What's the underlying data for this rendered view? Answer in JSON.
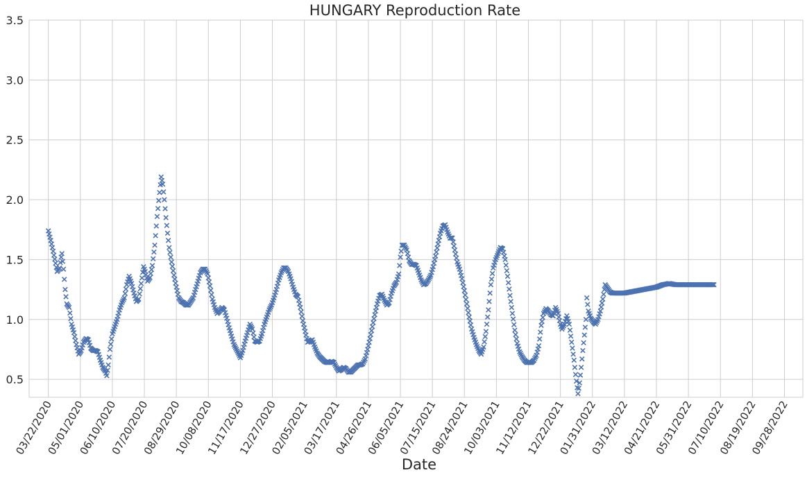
{
  "chart_data": {
    "type": "scatter",
    "marker": "x",
    "title": "HUNGARY   Reproduction Rate",
    "xlabel": "Date",
    "ylabel": "",
    "ylim": [
      0.35,
      3.5
    ],
    "yticks": [
      0.5,
      1.0,
      1.5,
      2.0,
      2.5,
      3.0,
      3.5
    ],
    "ytick_labels": [
      "0.5",
      "1.0",
      "1.5",
      "2.0",
      "2.5",
      "3.0",
      "3.5"
    ],
    "xlim": [
      "2020-02-27",
      "2022-10-21"
    ],
    "xtick_labels": [
      "03/22/2020",
      "05/01/2020",
      "06/10/2020",
      "07/20/2020",
      "08/29/2020",
      "10/08/2020",
      "11/17/2020",
      "12/27/2020",
      "02/05/2021",
      "03/17/2021",
      "04/26/2021",
      "06/05/2021",
      "07/15/2021",
      "08/24/2021",
      "10/03/2021",
      "11/12/2021",
      "12/22/2021",
      "01/31/2022",
      "03/12/2022",
      "04/21/2022",
      "05/31/2022",
      "07/10/2022",
      "08/19/2022",
      "09/28/2022"
    ],
    "grid": true,
    "series": [
      {
        "color": "#4c72b0",
        "points": [
          [
            "2020-03-22",
            1.74
          ],
          [
            "2020-03-25",
            1.66
          ],
          [
            "2020-03-28",
            1.57
          ],
          [
            "2020-03-31",
            1.47
          ],
          [
            "2020-04-02",
            1.4
          ],
          [
            "2020-04-05",
            1.43
          ],
          [
            "2020-04-07",
            1.52
          ],
          [
            "2020-04-08",
            1.55
          ],
          [
            "2020-04-10",
            1.42
          ],
          [
            "2020-04-12",
            1.25
          ],
          [
            "2020-04-14",
            1.13
          ],
          [
            "2020-04-17",
            1.1
          ],
          [
            "2020-04-20",
            0.96
          ],
          [
            "2020-04-23",
            0.89
          ],
          [
            "2020-04-26",
            0.79
          ],
          [
            "2020-04-29",
            0.71
          ],
          [
            "2020-05-02",
            0.74
          ],
          [
            "2020-05-05",
            0.81
          ],
          [
            "2020-05-08",
            0.84
          ],
          [
            "2020-05-11",
            0.83
          ],
          [
            "2020-05-14",
            0.76
          ],
          [
            "2020-05-17",
            0.74
          ],
          [
            "2020-05-20",
            0.74
          ],
          [
            "2020-05-23",
            0.73
          ],
          [
            "2020-05-26",
            0.66
          ],
          [
            "2020-05-29",
            0.6
          ],
          [
            "2020-06-01",
            0.57
          ],
          [
            "2020-06-03",
            0.53
          ],
          [
            "2020-06-05",
            0.62
          ],
          [
            "2020-06-07",
            0.75
          ],
          [
            "2020-06-10",
            0.88
          ],
          [
            "2020-06-13",
            0.94
          ],
          [
            "2020-06-16",
            1.0
          ],
          [
            "2020-06-19",
            1.08
          ],
          [
            "2020-06-22",
            1.14
          ],
          [
            "2020-06-25",
            1.18
          ],
          [
            "2020-06-28",
            1.29
          ],
          [
            "2020-07-01",
            1.36
          ],
          [
            "2020-07-04",
            1.3
          ],
          [
            "2020-07-07",
            1.22
          ],
          [
            "2020-07-10",
            1.15
          ],
          [
            "2020-07-13",
            1.17
          ],
          [
            "2020-07-16",
            1.3
          ],
          [
            "2020-07-19",
            1.44
          ],
          [
            "2020-07-21",
            1.4
          ],
          [
            "2020-07-24",
            1.32
          ],
          [
            "2020-07-27",
            1.35
          ],
          [
            "2020-07-30",
            1.45
          ],
          [
            "2020-08-02",
            1.62
          ],
          [
            "2020-08-05",
            1.86
          ],
          [
            "2020-08-08",
            2.06
          ],
          [
            "2020-08-10",
            2.19
          ],
          [
            "2020-08-12",
            2.13
          ],
          [
            "2020-08-14",
            2.0
          ],
          [
            "2020-08-16",
            1.85
          ],
          [
            "2020-08-18",
            1.72
          ],
          [
            "2020-08-20",
            1.6
          ],
          [
            "2020-08-23",
            1.48
          ],
          [
            "2020-08-26",
            1.37
          ],
          [
            "2020-08-29",
            1.27
          ],
          [
            "2020-09-01",
            1.18
          ],
          [
            "2020-09-04",
            1.15
          ],
          [
            "2020-09-07",
            1.14
          ],
          [
            "2020-09-10",
            1.12
          ],
          [
            "2020-09-13",
            1.12
          ],
          [
            "2020-09-16",
            1.15
          ],
          [
            "2020-09-19",
            1.18
          ],
          [
            "2020-09-22",
            1.25
          ],
          [
            "2020-09-25",
            1.32
          ],
          [
            "2020-09-28",
            1.39
          ],
          [
            "2020-10-01",
            1.42
          ],
          [
            "2020-10-04",
            1.42
          ],
          [
            "2020-10-07",
            1.38
          ],
          [
            "2020-10-10",
            1.28
          ],
          [
            "2020-10-13",
            1.17
          ],
          [
            "2020-10-16",
            1.1
          ],
          [
            "2020-10-19",
            1.05
          ],
          [
            "2020-10-22",
            1.07
          ],
          [
            "2020-10-25",
            1.1
          ],
          [
            "2020-10-28",
            1.08
          ],
          [
            "2020-10-31",
            1.01
          ],
          [
            "2020-11-03",
            0.93
          ],
          [
            "2020-11-06",
            0.86
          ],
          [
            "2020-11-09",
            0.79
          ],
          [
            "2020-11-12",
            0.75
          ],
          [
            "2020-11-15",
            0.71
          ],
          [
            "2020-11-17",
            0.68
          ],
          [
            "2020-11-20",
            0.74
          ],
          [
            "2020-11-23",
            0.82
          ],
          [
            "2020-11-26",
            0.89
          ],
          [
            "2020-11-29",
            0.96
          ],
          [
            "2020-12-02",
            0.92
          ],
          [
            "2020-12-05",
            0.82
          ],
          [
            "2020-12-08",
            0.81
          ],
          [
            "2020-12-11",
            0.82
          ],
          [
            "2020-12-14",
            0.88
          ],
          [
            "2020-12-17",
            0.96
          ],
          [
            "2020-12-20",
            1.02
          ],
          [
            "2020-12-23",
            1.08
          ],
          [
            "2020-12-26",
            1.12
          ],
          [
            "2020-12-29",
            1.18
          ],
          [
            "2021-01-01",
            1.25
          ],
          [
            "2021-01-04",
            1.33
          ],
          [
            "2021-01-07",
            1.39
          ],
          [
            "2021-01-10",
            1.43
          ],
          [
            "2021-01-13",
            1.43
          ],
          [
            "2021-01-16",
            1.4
          ],
          [
            "2021-01-19",
            1.34
          ],
          [
            "2021-01-22",
            1.27
          ],
          [
            "2021-01-25",
            1.21
          ],
          [
            "2021-01-28",
            1.19
          ],
          [
            "2021-01-31",
            1.1
          ],
          [
            "2021-02-03",
            0.99
          ],
          [
            "2021-02-06",
            0.9
          ],
          [
            "2021-02-09",
            0.81
          ],
          [
            "2021-02-12",
            0.82
          ],
          [
            "2021-02-15",
            0.83
          ],
          [
            "2021-02-18",
            0.77
          ],
          [
            "2021-02-21",
            0.72
          ],
          [
            "2021-02-24",
            0.69
          ],
          [
            "2021-02-27",
            0.67
          ],
          [
            "2021-03-02",
            0.65
          ],
          [
            "2021-03-05",
            0.64
          ],
          [
            "2021-03-08",
            0.64
          ],
          [
            "2021-03-11",
            0.65
          ],
          [
            "2021-03-14",
            0.64
          ],
          [
            "2021-03-17",
            0.6
          ],
          [
            "2021-03-20",
            0.57
          ],
          [
            "2021-03-23",
            0.58
          ],
          [
            "2021-03-26",
            0.6
          ],
          [
            "2021-03-29",
            0.59
          ],
          [
            "2021-04-01",
            0.56
          ],
          [
            "2021-04-04",
            0.56
          ],
          [
            "2021-04-07",
            0.58
          ],
          [
            "2021-04-10",
            0.6
          ],
          [
            "2021-04-13",
            0.62
          ],
          [
            "2021-04-16",
            0.62
          ],
          [
            "2021-04-19",
            0.63
          ],
          [
            "2021-04-22",
            0.67
          ],
          [
            "2021-04-25",
            0.75
          ],
          [
            "2021-04-28",
            0.84
          ],
          [
            "2021-05-01",
            0.94
          ],
          [
            "2021-05-04",
            1.04
          ],
          [
            "2021-05-07",
            1.13
          ],
          [
            "2021-05-10",
            1.2
          ],
          [
            "2021-05-13",
            1.21
          ],
          [
            "2021-05-16",
            1.16
          ],
          [
            "2021-05-19",
            1.12
          ],
          [
            "2021-05-22",
            1.14
          ],
          [
            "2021-05-25",
            1.22
          ],
          [
            "2021-05-28",
            1.28
          ],
          [
            "2021-05-31",
            1.31
          ],
          [
            "2021-06-03",
            1.38
          ],
          [
            "2021-06-05",
            1.52
          ],
          [
            "2021-06-07",
            1.62
          ],
          [
            "2021-06-10",
            1.62
          ],
          [
            "2021-06-13",
            1.58
          ],
          [
            "2021-06-16",
            1.49
          ],
          [
            "2021-06-19",
            1.46
          ],
          [
            "2021-06-22",
            1.46
          ],
          [
            "2021-06-25",
            1.45
          ],
          [
            "2021-06-28",
            1.39
          ],
          [
            "2021-07-01",
            1.33
          ],
          [
            "2021-07-04",
            1.29
          ],
          [
            "2021-07-07",
            1.3
          ],
          [
            "2021-07-10",
            1.33
          ],
          [
            "2021-07-13",
            1.37
          ],
          [
            "2021-07-16",
            1.44
          ],
          [
            "2021-07-19",
            1.53
          ],
          [
            "2021-07-22",
            1.63
          ],
          [
            "2021-07-25",
            1.72
          ],
          [
            "2021-07-28",
            1.78
          ],
          [
            "2021-07-31",
            1.79
          ],
          [
            "2021-08-03",
            1.73
          ],
          [
            "2021-08-06",
            1.68
          ],
          [
            "2021-08-09",
            1.68
          ],
          [
            "2021-08-12",
            1.58
          ],
          [
            "2021-08-15",
            1.48
          ],
          [
            "2021-08-18",
            1.42
          ],
          [
            "2021-08-21",
            1.34
          ],
          [
            "2021-08-24",
            1.24
          ],
          [
            "2021-08-27",
            1.13
          ],
          [
            "2021-08-30",
            1.02
          ],
          [
            "2021-09-02",
            0.92
          ],
          [
            "2021-09-05",
            0.85
          ],
          [
            "2021-09-08",
            0.79
          ],
          [
            "2021-09-11",
            0.74
          ],
          [
            "2021-09-14",
            0.71
          ],
          [
            "2021-09-17",
            0.77
          ],
          [
            "2021-09-20",
            0.9
          ],
          [
            "2021-09-23",
            1.08
          ],
          [
            "2021-09-26",
            1.29
          ],
          [
            "2021-09-29",
            1.43
          ],
          [
            "2021-10-02",
            1.5
          ],
          [
            "2021-10-05",
            1.55
          ],
          [
            "2021-10-08",
            1.6
          ],
          [
            "2021-10-11",
            1.59
          ],
          [
            "2021-10-14",
            1.5
          ],
          [
            "2021-10-17",
            1.36
          ],
          [
            "2021-10-20",
            1.2
          ],
          [
            "2021-10-23",
            1.05
          ],
          [
            "2021-10-26",
            0.91
          ],
          [
            "2021-10-29",
            0.8
          ],
          [
            "2021-11-01",
            0.73
          ],
          [
            "2021-11-04",
            0.69
          ],
          [
            "2021-11-07",
            0.66
          ],
          [
            "2021-11-10",
            0.64
          ],
          [
            "2021-11-13",
            0.64
          ],
          [
            "2021-11-16",
            0.64
          ],
          [
            "2021-11-19",
            0.66
          ],
          [
            "2021-11-22",
            0.7
          ],
          [
            "2021-11-25",
            0.78
          ],
          [
            "2021-11-28",
            0.95
          ],
          [
            "2021-12-01",
            1.05
          ],
          [
            "2021-12-04",
            1.09
          ],
          [
            "2021-12-07",
            1.07
          ],
          [
            "2021-12-10",
            1.04
          ],
          [
            "2021-12-13",
            1.03
          ],
          [
            "2021-12-16",
            1.1
          ],
          [
            "2021-12-19",
            1.05
          ],
          [
            "2021-12-22",
            0.96
          ],
          [
            "2021-12-24",
            0.92
          ],
          [
            "2021-12-27",
            0.96
          ],
          [
            "2021-12-30",
            1.03
          ],
          [
            "2022-01-02",
            0.96
          ],
          [
            "2022-01-04",
            0.86
          ],
          [
            "2022-01-06",
            0.76
          ],
          [
            "2022-01-08",
            0.66
          ],
          [
            "2022-01-10",
            0.54
          ],
          [
            "2022-01-12",
            0.43
          ],
          [
            "2022-01-13",
            0.38
          ],
          [
            "2022-01-15",
            0.47
          ],
          [
            "2022-01-17",
            0.6
          ],
          [
            "2022-01-19",
            0.74
          ],
          [
            "2022-01-21",
            0.87
          ],
          [
            "2022-01-23",
            1.0
          ],
          [
            "2022-01-24",
            1.18
          ],
          [
            "2022-01-26",
            1.07
          ],
          [
            "2022-01-29",
            1.01
          ],
          [
            "2022-02-01",
            0.98
          ],
          [
            "2022-02-04",
            0.96
          ],
          [
            "2022-02-07",
            1.0
          ],
          [
            "2022-02-10",
            1.07
          ],
          [
            "2022-02-13",
            1.17
          ],
          [
            "2022-02-16",
            1.29
          ],
          [
            "2022-02-19",
            1.26
          ],
          [
            "2022-02-22",
            1.23
          ],
          [
            "2022-02-25",
            1.22
          ],
          [
            "2022-03-04",
            1.22
          ],
          [
            "2022-03-12",
            1.22
          ],
          [
            "2022-03-20",
            1.23
          ],
          [
            "2022-03-28",
            1.24
          ],
          [
            "2022-04-05",
            1.25
          ],
          [
            "2022-04-13",
            1.26
          ],
          [
            "2022-04-21",
            1.27
          ],
          [
            "2022-04-29",
            1.29
          ],
          [
            "2022-05-07",
            1.3
          ],
          [
            "2022-05-15",
            1.29
          ],
          [
            "2022-05-23",
            1.29
          ],
          [
            "2022-05-31",
            1.29
          ],
          [
            "2022-06-08",
            1.29
          ],
          [
            "2022-06-16",
            1.29
          ],
          [
            "2022-06-24",
            1.29
          ],
          [
            "2022-07-02",
            1.29
          ]
        ]
      }
    ]
  }
}
